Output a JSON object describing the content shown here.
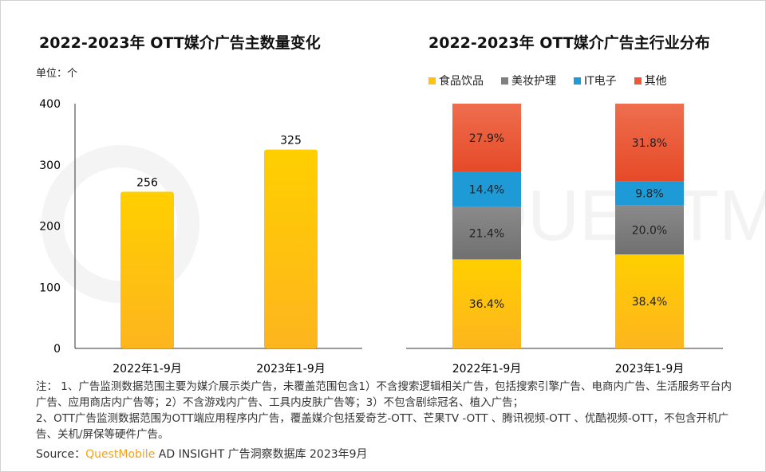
{
  "chart_data": [
    {
      "type": "bar",
      "title": "2022-2023年 OTT媒介广告主数量变化",
      "ylabel": "单位：个",
      "categories": [
        "2022年1-9月",
        "2023年1-9月"
      ],
      "values": [
        256,
        325
      ],
      "ylim": [
        0,
        400
      ],
      "yticks": [
        0,
        100,
        200,
        300,
        400
      ],
      "color": "#FFC20E"
    },
    {
      "type": "bar",
      "stacked": true,
      "percent": true,
      "title": "2022-2023年 OTT媒介广告主行业分布",
      "categories": [
        "2022年1-9月",
        "2023年1-9月"
      ],
      "legend_position": "top",
      "series": [
        {
          "name": "食品饮品",
          "values": [
            36.4,
            38.4
          ],
          "color": "#FFC20E"
        },
        {
          "name": "美妆护理",
          "values": [
            21.4,
            20.0
          ],
          "color": "#808080"
        },
        {
          "name": "IT电子",
          "values": [
            14.4,
            9.8
          ],
          "color": "#1E9BD7"
        },
        {
          "name": "其他",
          "values": [
            27.9,
            31.8
          ],
          "color": "#EA5A38"
        }
      ]
    }
  ],
  "notes": [
    "注： 1、广告监测数据范围主要为媒介展示类广告，未覆盖范围包含1）不含搜索逻辑相关广告，包括搜索引擎广告、电商内广告、生活服务平台内广告、应用商店内广告等；2）不含游戏内广告、工具内皮肤广告等；3）不包含剧综冠名、植入广告；",
    "2、OTT广告监测数据范围为OTT端应用程序内广告，覆盖媒介包括爱奇艺-OTT、芒果TV -OTT 、腾讯视频-OTT 、优酷视频-OTT，不包含开机广告、关机/屏保等硬件广告。"
  ],
  "source": {
    "label": "Source：",
    "brand": "QuestMobile",
    "text": " AD INSIGHT 广告洞察数据库 2023年9月"
  },
  "watermark": "QUESTMOBILE"
}
